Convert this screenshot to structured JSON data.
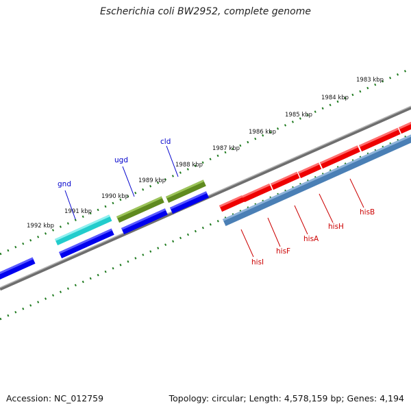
{
  "title": "Escherichia coli BW2952, complete genome",
  "accession": "Accession: NC_012759",
  "stats": "Topology: circular; Length: 4,578,159 bp; Genes: 4,194",
  "colors": {
    "backbone": "#8c8c8c",
    "ticks": "#1e7a1e",
    "forward_gene": "#ff0000",
    "reverse_gene": "#0000ff",
    "cds_blue": "#4f86bf",
    "gnd": "#2ed4d4",
    "ugd_cld": "#6b8e23",
    "label_forward": "#cc0000",
    "label_reverse": "#0000cc"
  },
  "kbp_labels": [
    "1983 kbp",
    "1984 kbp",
    "1985 kbp",
    "1986 kbp",
    "1987 kbp",
    "1988 kbp",
    "1989 kbp",
    "1990 kbp",
    "1991 kbp",
    "1992 kbp"
  ],
  "gene_labels": [
    "gnd",
    "ugd",
    "cld",
    "hisI",
    "hisF",
    "hisA",
    "hisH",
    "hisB"
  ]
}
